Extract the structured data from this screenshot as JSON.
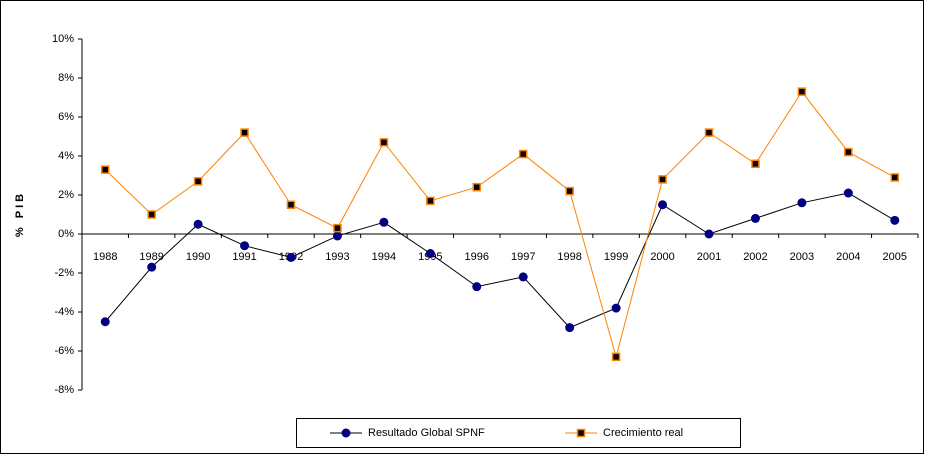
{
  "chart_data": {
    "type": "line",
    "y_label": "% PIB",
    "categories": [
      "1988",
      "1989",
      "1990",
      "1991",
      "1992",
      "1993",
      "1994",
      "1995",
      "1996",
      "1997",
      "1998",
      "1999",
      "2000",
      "2001",
      "2002",
      "2003",
      "2004",
      "2005"
    ],
    "series": [
      {
        "name": "Resultado Global SPNF",
        "color": "#000080",
        "line_color": "#000000",
        "marker": "circle",
        "values": [
          -4.5,
          -1.7,
          0.5,
          -0.6,
          -1.2,
          -0.1,
          0.6,
          -1.0,
          -2.7,
          -2.2,
          -4.8,
          -3.8,
          1.5,
          0.0,
          0.8,
          1.6,
          2.1,
          0.7
        ]
      },
      {
        "name": "Crecimiento real",
        "color": "#ff8000",
        "line_color": "#ff8000",
        "marker": "square",
        "values": [
          3.3,
          1.0,
          2.7,
          5.2,
          1.5,
          0.3,
          4.7,
          1.7,
          2.4,
          4.1,
          2.2,
          -6.3,
          2.8,
          5.2,
          3.6,
          7.3,
          4.2,
          2.9
        ]
      }
    ],
    "ylim": [
      -8,
      10
    ],
    "yticks": [
      {
        "value": -8,
        "label": "-8%"
      },
      {
        "value": -6,
        "label": "-6%"
      },
      {
        "value": -4,
        "label": "-4%"
      },
      {
        "value": -2,
        "label": "-2%"
      },
      {
        "value": 0,
        "label": "0%"
      },
      {
        "value": 2,
        "label": "2%"
      },
      {
        "value": 4,
        "label": "4%"
      },
      {
        "value": 6,
        "label": "6%"
      },
      {
        "value": 8,
        "label": "8%"
      },
      {
        "value": 10,
        "label": "10%"
      }
    ],
    "grid": false
  }
}
